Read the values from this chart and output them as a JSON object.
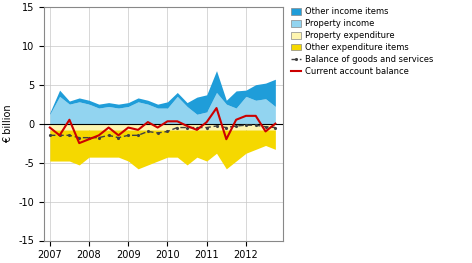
{
  "ylabel": "€ billion",
  "ylim": [
    -15,
    15
  ],
  "yticks": [
    -15,
    -10,
    -5,
    0,
    5,
    10,
    15
  ],
  "background_color": "#ffffff",
  "grid_color": "#c8c8c8",
  "x": [
    2007.0,
    2007.25,
    2007.5,
    2007.75,
    2008.0,
    2008.25,
    2008.5,
    2008.75,
    2009.0,
    2009.25,
    2009.5,
    2009.75,
    2010.0,
    2010.25,
    2010.5,
    2010.75,
    2011.0,
    2011.25,
    2011.5,
    2011.75,
    2012.0,
    2012.25,
    2012.5,
    2012.75
  ],
  "xticks": [
    2007,
    2008,
    2009,
    2010,
    2011,
    2012
  ],
  "xlim": [
    2006.85,
    2012.95
  ],
  "property_income": [
    1.2,
    3.5,
    2.5,
    2.8,
    2.5,
    2.0,
    2.2,
    2.0,
    2.2,
    2.8,
    2.5,
    2.0,
    2.0,
    3.5,
    2.2,
    1.2,
    1.5,
    4.0,
    2.5,
    2.0,
    3.5,
    3.0,
    3.2,
    2.2
  ],
  "other_income": [
    0.2,
    0.8,
    0.4,
    0.5,
    0.5,
    0.5,
    0.5,
    0.5,
    0.5,
    0.5,
    0.5,
    0.5,
    0.8,
    0.5,
    0.5,
    2.2,
    2.2,
    2.8,
    0.5,
    2.2,
    0.8,
    2.0,
    2.0,
    3.5
  ],
  "property_expenditure": [
    -0.8,
    -0.8,
    -0.8,
    -0.8,
    -0.8,
    -0.8,
    -0.8,
    -0.8,
    -0.8,
    -0.8,
    -0.8,
    -0.8,
    -0.8,
    -0.8,
    -0.8,
    -0.8,
    -0.8,
    -0.8,
    -0.8,
    -0.8,
    -0.8,
    -0.8,
    -0.8,
    -0.8
  ],
  "other_expenditure": [
    -4.0,
    -4.0,
    -4.0,
    -4.5,
    -3.5,
    -3.5,
    -3.5,
    -3.5,
    -4.0,
    -5.0,
    -4.5,
    -4.0,
    -3.5,
    -3.5,
    -4.5,
    -3.5,
    -4.0,
    -3.0,
    -5.0,
    -4.0,
    -3.0,
    -2.5,
    -2.0,
    -2.5
  ],
  "balance_goods_services": [
    -1.5,
    -1.5,
    -1.5,
    -1.8,
    -1.8,
    -1.8,
    -1.5,
    -1.8,
    -1.5,
    -1.5,
    -1.0,
    -1.2,
    -1.0,
    -0.5,
    -0.5,
    -0.5,
    -0.5,
    -0.3,
    -0.5,
    -0.3,
    -0.2,
    -0.2,
    -0.4,
    -0.5
  ],
  "current_account": [
    -0.5,
    -1.5,
    0.5,
    -2.5,
    -2.0,
    -1.5,
    -0.5,
    -1.5,
    -0.5,
    -0.8,
    0.2,
    -0.5,
    0.3,
    0.3,
    -0.3,
    -0.8,
    0.2,
    2.0,
    -2.0,
    0.5,
    1.0,
    1.0,
    -1.0,
    0.0
  ],
  "color_other_income": "#1f9dd9",
  "color_property_income": "#92d4f0",
  "color_property_expenditure": "#fef5b0",
  "color_other_expenditure": "#f5d800",
  "color_balance": "#404040",
  "color_current_account": "#cc0000",
  "legend_labels": [
    "Other income items",
    "Property income",
    "Property expenditure",
    "Other expenditure items",
    "Balance of goods and services",
    "Current account balance"
  ]
}
